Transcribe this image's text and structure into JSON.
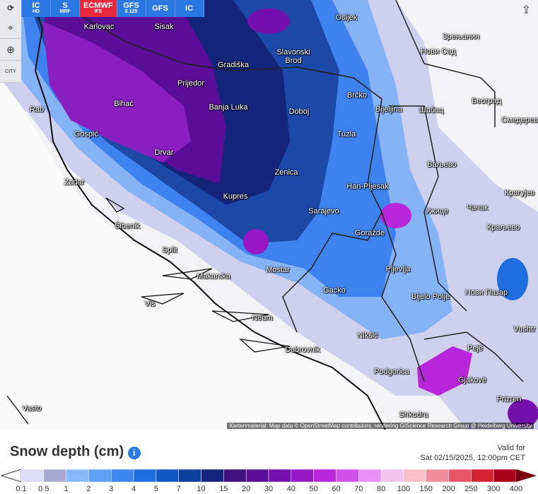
{
  "toolbar": {
    "buttons": [
      {
        "main": "IC",
        "sub": "HD"
      },
      {
        "main": "S",
        "sub": "MRF"
      },
      {
        "main": "ECMWF",
        "sub": "IFS"
      },
      {
        "main": "GFS",
        "sub": "0.125"
      },
      {
        "main": "GFS"
      },
      {
        "main": "IC"
      }
    ],
    "city_button": "CITY"
  },
  "map": {
    "cities": [
      "Karlovac",
      "Sisak",
      "Osijek",
      "Зрењанин",
      "Slavonski Brod",
      "Нови Сад",
      "Gradiška",
      "Prijedor",
      "Brčko",
      "Београд",
      "Rab",
      "Bihać",
      "Banja Luka",
      "Doboj",
      "Bijeljina",
      "Шабац",
      "Смедерев",
      "Gospić",
      "Tuzla",
      "Drvar",
      "Ваљево",
      "Zenica",
      "Zadar",
      "Han-Pijesak",
      "Крагујев",
      "Kupres",
      "Sarajevo",
      "Ужице",
      "Чачак",
      "Šibenik",
      "Goražde",
      "Краљево",
      "Split",
      "Pljevlja",
      "Mostar",
      "Makarska",
      "Gacko",
      "Нови Пазар",
      "Bijelo Polje",
      "Vis",
      "Neum",
      "Nikšić",
      "Vushtr",
      "Pejë",
      "Dubrovnik",
      "Podgorica",
      "Gjakovë",
      "Prizren",
      "Vasto",
      "Shkodra"
    ],
    "attribution": "Kartenmaterial: Map data © OpenStreetMap contributors, rendering GIScience Research Group @ Heidelberg University"
  },
  "footer": {
    "title": "Snow depth (cm)",
    "valid_for": "Valid for",
    "date": "Sat 02/15/2025, 12:00pm CET"
  },
  "legend": {
    "labels": [
      0.1,
      0.5,
      1,
      2,
      3,
      4,
      5,
      7,
      10,
      15,
      20,
      30,
      40,
      50,
      60,
      70,
      80,
      100,
      150,
      200,
      250,
      300,
      400
    ],
    "colors": [
      "#ffffff",
      "#dcdcf6",
      "#a9a9d4",
      "#88b8f8",
      "#5fa0f4",
      "#3d86ee",
      "#1e6ee0",
      "#1258c4",
      "#0c3f9c",
      "#14247a",
      "#40107e",
      "#5a0d96",
      "#7410ac",
      "#9618c4",
      "#b826dc",
      "#d050ea",
      "#e890f2",
      "#f4c4f0",
      "#f8c0cc",
      "#f08c9c",
      "#e85468",
      "#d42434",
      "#a8001a",
      "#780010"
    ]
  }
}
